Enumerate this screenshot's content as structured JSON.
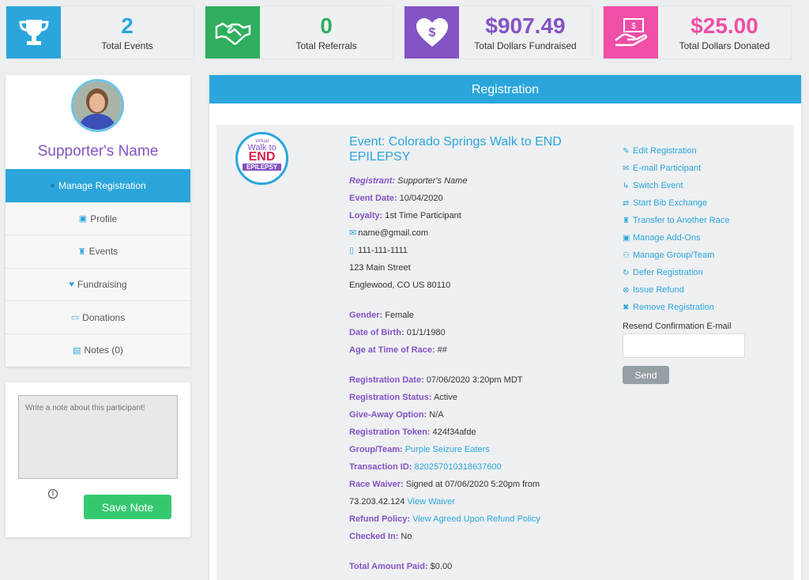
{
  "stats": [
    {
      "value": "2",
      "label": "Total Events",
      "color": "#2ba6dc",
      "icon": "trophy-icon"
    },
    {
      "value": "0",
      "label": "Total Referrals",
      "color": "#2eae5e",
      "icon": "handshake-icon"
    },
    {
      "value": "$907.49",
      "label": "Total Dollars Fundraised",
      "color": "#8453c4",
      "icon": "heart-dollar-icon"
    },
    {
      "value": "$25.00",
      "label": "Total Dollars Donated",
      "color": "#ef4fa6",
      "icon": "hand-money-icon"
    }
  ],
  "sidebar": {
    "name": "Supporter's Name",
    "menu": [
      {
        "label": "Manage Registration",
        "icon": "user-icon"
      },
      {
        "label": "Profile",
        "icon": "id-card-icon"
      },
      {
        "label": "Events",
        "icon": "trophy-icon"
      },
      {
        "label": "Fundraising",
        "icon": "heart-icon"
      },
      {
        "label": "Donations",
        "icon": "money-icon"
      },
      {
        "label": "Notes (0)",
        "icon": "note-icon"
      }
    ]
  },
  "note": {
    "placeholder": "Write a note about this participant!",
    "save_label": "Save Note"
  },
  "registration": {
    "header": "Registration",
    "logo": {
      "l1": "Virtual",
      "l2": "Walk to",
      "l3": "END",
      "l4": "EPILEPSY"
    },
    "event_title": "Event: Colorado Springs Walk to END EPILEPSY",
    "registrant_label": "Registrant:",
    "registrant": "Supporter's Name",
    "event_date_label": "Event Date:",
    "event_date": "10/04/2020",
    "loyalty_label": "Loyalty:",
    "loyalty": "1st Time Participant",
    "email": "name@gmail.com",
    "phone": "111-111-1111",
    "address1": "123 Main Street",
    "address2": "Englewood, CO US 80110",
    "gender_label": "Gender:",
    "gender": "Female",
    "dob_label": "Date of Birth:",
    "dob": "01/1/1980",
    "age_label": "Age at Time of Race:",
    "age": "##",
    "reg_date_label": "Registration Date:",
    "reg_date": "07/06/2020 3:20pm MDT",
    "status_label": "Registration Status:",
    "status": "Active",
    "giveaway_label": "Give-Away Option:",
    "giveaway": "N/A",
    "token_label": "Registration Token:",
    "token": "424f34afde",
    "group_label": "Group/Team:",
    "group": "Purple Seizure Eaters",
    "txn_label": "Transaction ID:",
    "txn": "820257010318637600",
    "waiver_label": "Race Waiver:",
    "waiver": "Signed at 07/06/2020 5:20pm from",
    "waiver_ip": "73.203.42.124",
    "waiver_link": "View Waiver",
    "refund_label": "Refund Policy:",
    "refund_link": "View Agreed Upon Refund Policy",
    "checked_label": "Checked In:",
    "checked": "No",
    "total_label": "Total Amount Paid:",
    "total": "$0.00"
  },
  "actions": [
    {
      "label": "Edit Registration",
      "icon": "edit-icon",
      "glyph": "✎"
    },
    {
      "label": "E-mail Participant",
      "icon": "email-icon",
      "glyph": "✉"
    },
    {
      "label": "Switch Event",
      "icon": "switch-icon",
      "glyph": "↳"
    },
    {
      "label": "Start Bib Exchange",
      "icon": "exchange-icon",
      "glyph": "⇄"
    },
    {
      "label": "Transfer to Another Race",
      "icon": "trophy-icon",
      "glyph": "♜"
    },
    {
      "label": "Manage Add-Ons",
      "icon": "gift-icon",
      "glyph": "▣"
    },
    {
      "label": "Manage Group/Team",
      "icon": "group-icon",
      "glyph": "⚇"
    },
    {
      "label": "Defer Registration",
      "icon": "refresh-icon",
      "glyph": "↻"
    },
    {
      "label": "Issue Refund",
      "icon": "cancel-circle-icon",
      "glyph": "⊗"
    },
    {
      "label": "Remove Registration",
      "icon": "user-remove-icon",
      "glyph": "✖"
    }
  ],
  "resend": {
    "label": "Resend Confirmation E-mail",
    "send_label": "Send"
  }
}
